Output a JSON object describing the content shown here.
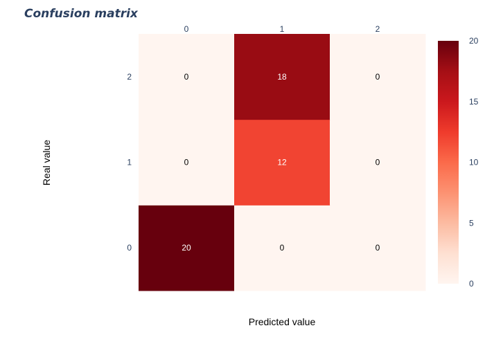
{
  "chart_data": {
    "type": "heatmap",
    "title": "Confusion matrix",
    "xlabel": "Predicted value",
    "ylabel": "Real value",
    "x_categories": [
      "0",
      "1",
      "2"
    ],
    "y_categories": [
      "0",
      "1",
      "2"
    ],
    "x_axis_side": "top",
    "y_order": "bottom-to-top",
    "z": [
      [
        20,
        0,
        0
      ],
      [
        0,
        12,
        0
      ],
      [
        0,
        18,
        0
      ]
    ],
    "colorscale": "Reds",
    "zmin": 0,
    "zmax": 20,
    "colorbar": {
      "ticks": [
        0,
        5,
        10,
        15,
        20
      ],
      "placement": "right"
    },
    "show_cell_values": true,
    "grid": false,
    "colors": {
      "title": "#2a3f5f",
      "ticks": "#2a3f5f",
      "scale": [
        "#fff5f0",
        "#fee0d2",
        "#fcbba1",
        "#fc9272",
        "#fb6a4a",
        "#ef3b2c",
        "#cb181d",
        "#a50f15",
        "#67000d"
      ]
    }
  }
}
